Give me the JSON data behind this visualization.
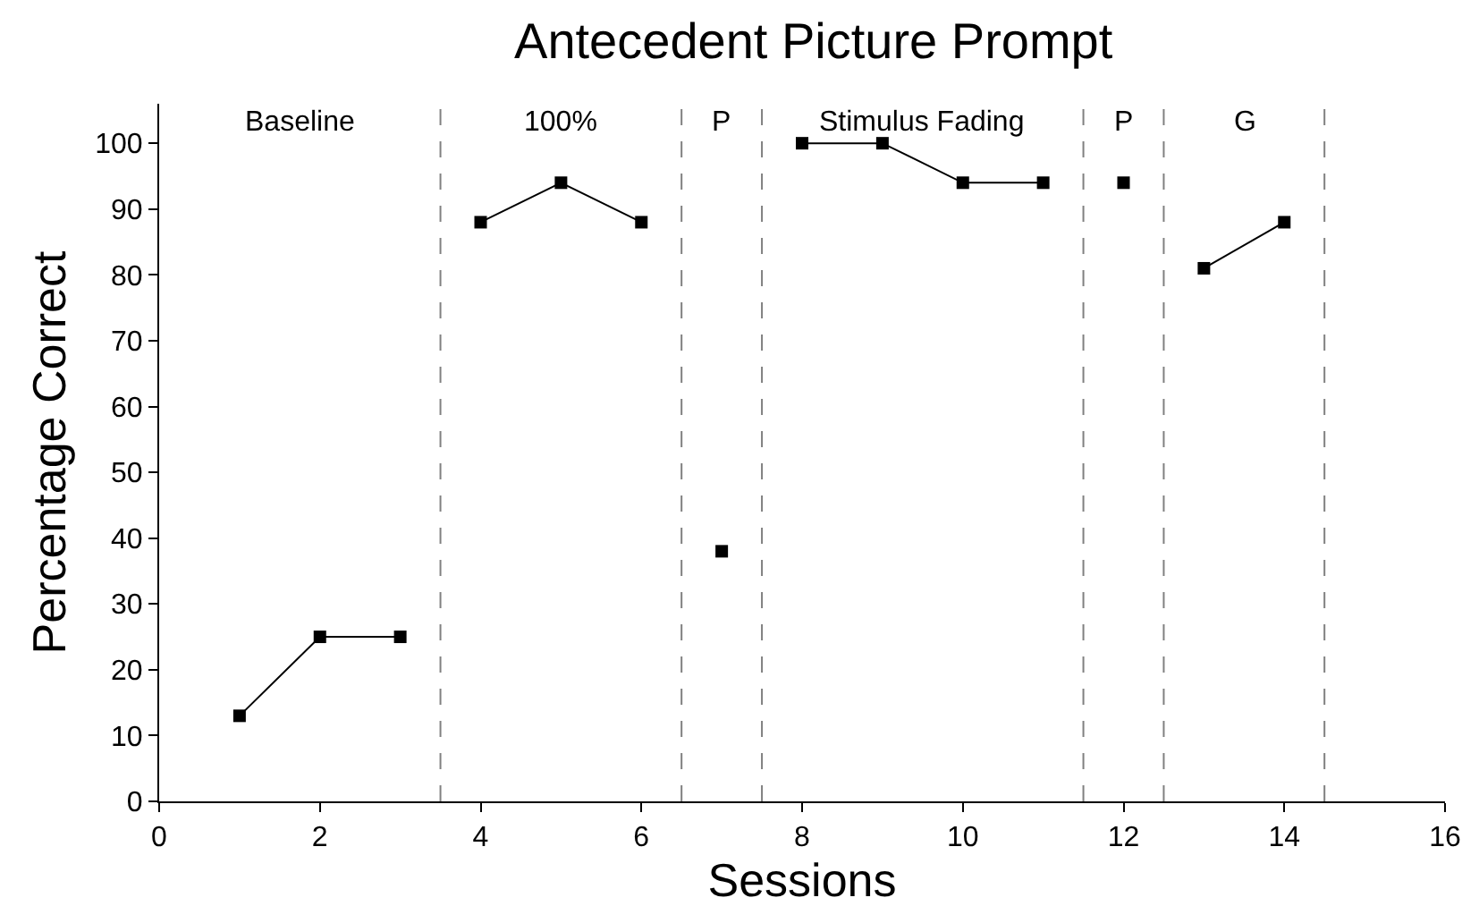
{
  "chart_data": {
    "type": "line",
    "title": "Antecedent Picture Prompt",
    "xlabel": "Sessions",
    "ylabel": "Percentage Correct",
    "xlim": [
      0,
      16
    ],
    "xticks": [
      0,
      2,
      4,
      6,
      8,
      10,
      12,
      14,
      16
    ],
    "ylim": [
      0,
      106
    ],
    "yticks": [
      0,
      10,
      20,
      30,
      40,
      50,
      60,
      70,
      80,
      90,
      100
    ],
    "series": [
      {
        "color": "#000000",
        "x": [
          1,
          2,
          3
        ],
        "values": [
          13,
          25,
          25
        ]
      },
      {
        "color": "#000000",
        "x": [
          4,
          5,
          6
        ],
        "values": [
          88,
          94,
          88
        ]
      },
      {
        "color": "#000000",
        "x": [
          7
        ],
        "values": [
          38
        ]
      },
      {
        "color": "#000000",
        "x": [
          8,
          9,
          10,
          11
        ],
        "values": [
          100,
          100,
          94,
          94
        ]
      },
      {
        "color": "#000000",
        "x": [
          12
        ],
        "values": [
          94
        ]
      },
      {
        "color": "#000000",
        "x": [
          13,
          14
        ],
        "values": [
          81,
          88
        ]
      }
    ],
    "marker": "square",
    "line_style": "solid",
    "ref_lines": [
      {
        "axis": "x",
        "value": 3.5,
        "color": "#808080",
        "line_style": "dashed"
      },
      {
        "axis": "x",
        "value": 6.5,
        "color": "#808080",
        "line_style": "dashed"
      },
      {
        "axis": "x",
        "value": 7.5,
        "color": "#808080",
        "line_style": "dashed"
      },
      {
        "axis": "x",
        "value": 11.5,
        "color": "#808080",
        "line_style": "dashed"
      },
      {
        "axis": "x",
        "value": 12.5,
        "color": "#808080",
        "line_style": "dashed"
      },
      {
        "axis": "x",
        "value": 14.5,
        "color": "#808080",
        "line_style": "dashed"
      }
    ],
    "annotations": [
      "Baseline",
      "100%",
      "P",
      "Stimulus Fading",
      "P",
      "G"
    ]
  }
}
